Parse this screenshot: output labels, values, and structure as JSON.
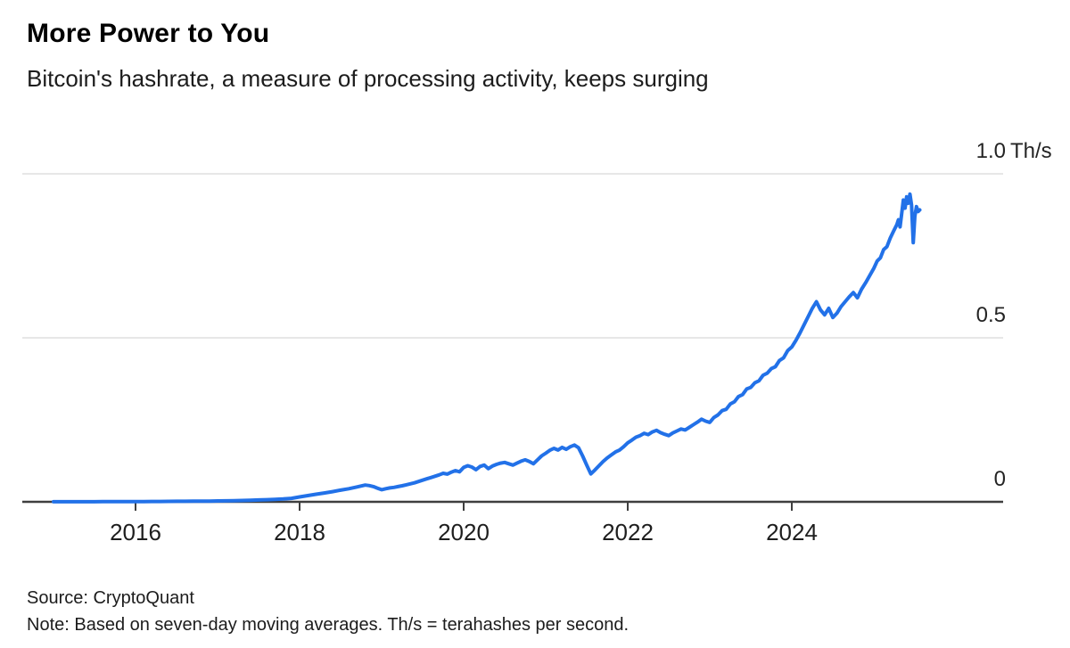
{
  "header": {
    "title": "More Power to You",
    "subtitle": "Bitcoin's hashrate, a measure of processing activity, keeps surging"
  },
  "footer": {
    "source": "Source: CryptoQuant",
    "note": "Note: Based on seven-day moving averages. Th/s = terahashes per second."
  },
  "chart_data": {
    "type": "line",
    "title": "More Power to You",
    "subtitle": "Bitcoin's hashrate, a measure of processing activity, keeps surging",
    "series_name": "Bitcoin hashrate (seven-day moving average)",
    "xlabel": "",
    "ylabel": "Th/s",
    "x_range": [
      2014.95,
      2025.75
    ],
    "ylim": [
      0,
      1.0
    ],
    "grid": "horizontal",
    "legend": "none",
    "colors": {
      "line": "#2271e8",
      "gridline": "#e7e7e7",
      "baseline": "#3f3f3f",
      "tick": "#3f3f3f",
      "axis_text": "#242424"
    },
    "y_ticks": [
      {
        "value": 1.0,
        "label": "1.0",
        "unit": "Th/s",
        "baseline": false
      },
      {
        "value": 0.5,
        "label": "0.5",
        "unit": "",
        "baseline": false
      },
      {
        "value": 0.0,
        "label": "0",
        "unit": "",
        "baseline": true
      }
    ],
    "x_ticks": [
      {
        "year": 2016,
        "label": "2016"
      },
      {
        "year": 2018,
        "label": "2018"
      },
      {
        "year": 2020,
        "label": "2020"
      },
      {
        "year": 2022,
        "label": "2022"
      },
      {
        "year": 2024,
        "label": "2024"
      }
    ],
    "points": [
      [
        2015.0,
        0.0003
      ],
      [
        2015.1,
        0.0003
      ],
      [
        2015.2,
        0.0003
      ],
      [
        2015.3,
        0.0004
      ],
      [
        2015.4,
        0.0004
      ],
      [
        2015.5,
        0.0004
      ],
      [
        2015.6,
        0.0005
      ],
      [
        2015.7,
        0.0005
      ],
      [
        2015.8,
        0.0006
      ],
      [
        2015.9,
        0.0007
      ],
      [
        2016.0,
        0.0008
      ],
      [
        2016.1,
        0.0009
      ],
      [
        2016.2,
        0.0011
      ],
      [
        2016.3,
        0.0012
      ],
      [
        2016.4,
        0.0013
      ],
      [
        2016.5,
        0.0015
      ],
      [
        2016.6,
        0.0016
      ],
      [
        2016.7,
        0.0018
      ],
      [
        2016.8,
        0.002
      ],
      [
        2016.9,
        0.0023
      ],
      [
        2017.0,
        0.0027
      ],
      [
        2017.1,
        0.0031
      ],
      [
        2017.2,
        0.0036
      ],
      [
        2017.3,
        0.0042
      ],
      [
        2017.4,
        0.005
      ],
      [
        2017.5,
        0.0058
      ],
      [
        2017.6,
        0.0066
      ],
      [
        2017.7,
        0.0075
      ],
      [
        2017.8,
        0.0086
      ],
      [
        2017.9,
        0.0105
      ],
      [
        2018.0,
        0.015
      ],
      [
        2018.1,
        0.019
      ],
      [
        2018.2,
        0.023
      ],
      [
        2018.3,
        0.027
      ],
      [
        2018.4,
        0.031
      ],
      [
        2018.5,
        0.0355
      ],
      [
        2018.6,
        0.04
      ],
      [
        2018.7,
        0.0455
      ],
      [
        2018.8,
        0.051
      ],
      [
        2018.85,
        0.0495
      ],
      [
        2018.9,
        0.0465
      ],
      [
        2018.95,
        0.0415
      ],
      [
        2019.0,
        0.037
      ],
      [
        2019.05,
        0.04
      ],
      [
        2019.1,
        0.0425
      ],
      [
        2019.15,
        0.044
      ],
      [
        2019.2,
        0.0465
      ],
      [
        2019.25,
        0.049
      ],
      [
        2019.3,
        0.052
      ],
      [
        2019.35,
        0.055
      ],
      [
        2019.4,
        0.058
      ],
      [
        2019.45,
        0.062
      ],
      [
        2019.5,
        0.066
      ],
      [
        2019.55,
        0.07
      ],
      [
        2019.6,
        0.074
      ],
      [
        2019.65,
        0.078
      ],
      [
        2019.7,
        0.082
      ],
      [
        2019.75,
        0.087
      ],
      [
        2019.8,
        0.0845
      ],
      [
        2019.85,
        0.0905
      ],
      [
        2019.9,
        0.095
      ],
      [
        2019.95,
        0.0915
      ],
      [
        2020.0,
        0.105
      ],
      [
        2020.05,
        0.11
      ],
      [
        2020.1,
        0.106
      ],
      [
        2020.15,
        0.098
      ],
      [
        2020.2,
        0.108
      ],
      [
        2020.25,
        0.112
      ],
      [
        2020.3,
        0.101
      ],
      [
        2020.35,
        0.109
      ],
      [
        2020.4,
        0.114
      ],
      [
        2020.45,
        0.118
      ],
      [
        2020.5,
        0.12
      ],
      [
        2020.55,
        0.116
      ],
      [
        2020.6,
        0.112
      ],
      [
        2020.65,
        0.118
      ],
      [
        2020.7,
        0.124
      ],
      [
        2020.75,
        0.128
      ],
      [
        2020.8,
        0.123
      ],
      [
        2020.85,
        0.116
      ],
      [
        2020.9,
        0.128
      ],
      [
        2020.95,
        0.14
      ],
      [
        2021.0,
        0.148
      ],
      [
        2021.05,
        0.157
      ],
      [
        2021.1,
        0.163
      ],
      [
        2021.15,
        0.158
      ],
      [
        2021.2,
        0.166
      ],
      [
        2021.25,
        0.16
      ],
      [
        2021.3,
        0.168
      ],
      [
        2021.35,
        0.173
      ],
      [
        2021.4,
        0.165
      ],
      [
        2021.45,
        0.14
      ],
      [
        2021.5,
        0.112
      ],
      [
        2021.55,
        0.085
      ],
      [
        2021.6,
        0.097
      ],
      [
        2021.65,
        0.11
      ],
      [
        2021.7,
        0.123
      ],
      [
        2021.75,
        0.134
      ],
      [
        2021.8,
        0.143
      ],
      [
        2021.85,
        0.152
      ],
      [
        2021.9,
        0.158
      ],
      [
        2021.95,
        0.168
      ],
      [
        2022.0,
        0.18
      ],
      [
        2022.05,
        0.188
      ],
      [
        2022.1,
        0.197
      ],
      [
        2022.15,
        0.202
      ],
      [
        2022.2,
        0.209
      ],
      [
        2022.25,
        0.205
      ],
      [
        2022.3,
        0.213
      ],
      [
        2022.35,
        0.218
      ],
      [
        2022.4,
        0.211
      ],
      [
        2022.45,
        0.206
      ],
      [
        2022.5,
        0.202
      ],
      [
        2022.55,
        0.21
      ],
      [
        2022.6,
        0.216
      ],
      [
        2022.65,
        0.222
      ],
      [
        2022.7,
        0.219
      ],
      [
        2022.75,
        0.227
      ],
      [
        2022.8,
        0.235
      ],
      [
        2022.85,
        0.243
      ],
      [
        2022.9,
        0.252
      ],
      [
        2022.95,
        0.246
      ],
      [
        2023.0,
        0.242
      ],
      [
        2023.05,
        0.257
      ],
      [
        2023.1,
        0.265
      ],
      [
        2023.15,
        0.278
      ],
      [
        2023.2,
        0.282
      ],
      [
        2023.25,
        0.298
      ],
      [
        2023.3,
        0.305
      ],
      [
        2023.35,
        0.321
      ],
      [
        2023.4,
        0.327
      ],
      [
        2023.45,
        0.344
      ],
      [
        2023.5,
        0.349
      ],
      [
        2023.55,
        0.363
      ],
      [
        2023.6,
        0.369
      ],
      [
        2023.65,
        0.386
      ],
      [
        2023.7,
        0.392
      ],
      [
        2023.75,
        0.406
      ],
      [
        2023.8,
        0.412
      ],
      [
        2023.85,
        0.431
      ],
      [
        2023.9,
        0.439
      ],
      [
        2023.95,
        0.461
      ],
      [
        2024.0,
        0.472
      ],
      [
        2024.05,
        0.492
      ],
      [
        2024.1,
        0.515
      ],
      [
        2024.15,
        0.54
      ],
      [
        2024.2,
        0.565
      ],
      [
        2024.25,
        0.59
      ],
      [
        2024.3,
        0.61
      ],
      [
        2024.35,
        0.585
      ],
      [
        2024.4,
        0.57
      ],
      [
        2024.45,
        0.59
      ],
      [
        2024.5,
        0.562
      ],
      [
        2024.55,
        0.575
      ],
      [
        2024.6,
        0.595
      ],
      [
        2024.65,
        0.61
      ],
      [
        2024.7,
        0.625
      ],
      [
        2024.75,
        0.638
      ],
      [
        2024.8,
        0.622
      ],
      [
        2024.85,
        0.648
      ],
      [
        2024.9,
        0.668
      ],
      [
        2024.95,
        0.69
      ],
      [
        2025.0,
        0.712
      ],
      [
        2025.04,
        0.734
      ],
      [
        2025.08,
        0.744
      ],
      [
        2025.12,
        0.769
      ],
      [
        2025.16,
        0.778
      ],
      [
        2025.2,
        0.804
      ],
      [
        2025.24,
        0.825
      ],
      [
        2025.28,
        0.845
      ],
      [
        2025.3,
        0.86
      ],
      [
        2025.32,
        0.838
      ],
      [
        2025.34,
        0.88
      ],
      [
        2025.36,
        0.92
      ],
      [
        2025.38,
        0.895
      ],
      [
        2025.4,
        0.93
      ],
      [
        2025.42,
        0.91
      ],
      [
        2025.44,
        0.938
      ],
      [
        2025.46,
        0.905
      ],
      [
        2025.48,
        0.79
      ],
      [
        2025.5,
        0.87
      ],
      [
        2025.52,
        0.9
      ],
      [
        2025.54,
        0.885
      ],
      [
        2025.56,
        0.89
      ]
    ]
  }
}
